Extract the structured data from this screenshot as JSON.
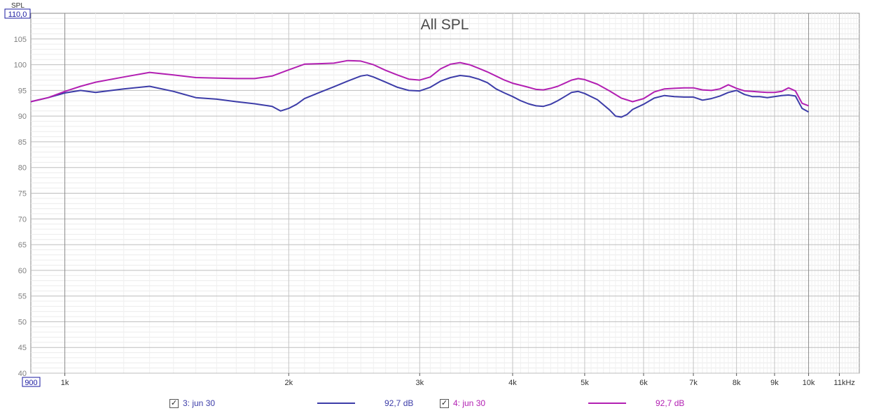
{
  "chart_data": {
    "type": "line",
    "title": "All SPL",
    "ylabel": "SPL",
    "xlabel": "",
    "x_scale": "log",
    "xlim": [
      900,
      11700
    ],
    "ylim": [
      40,
      110
    ],
    "y_max_label": "110,0",
    "x_min_label": "900",
    "y_ticks": [
      40,
      45,
      50,
      55,
      60,
      65,
      70,
      75,
      80,
      85,
      90,
      95,
      100,
      105
    ],
    "x_ticks": [
      {
        "value": 1000,
        "label": "1k"
      },
      {
        "value": 2000,
        "label": "2k"
      },
      {
        "value": 3000,
        "label": "3k"
      },
      {
        "value": 4000,
        "label": "4k"
      },
      {
        "value": 5000,
        "label": "5k"
      },
      {
        "value": 6000,
        "label": "6k"
      },
      {
        "value": 7000,
        "label": "7k"
      },
      {
        "value": 8000,
        "label": "8k"
      },
      {
        "value": 9000,
        "label": "9k"
      },
      {
        "value": 10000,
        "label": "10k"
      },
      {
        "value": 11000,
        "label": "11kHz"
      }
    ],
    "grid": true,
    "series": [
      {
        "name": "3: jun 30",
        "color": "#3c3ca8",
        "level_label": "92,7 dB",
        "x": [
          900,
          950,
          1000,
          1050,
          1100,
          1200,
          1300,
          1400,
          1500,
          1600,
          1700,
          1800,
          1900,
          1950,
          2000,
          2050,
          2100,
          2200,
          2300,
          2400,
          2500,
          2550,
          2600,
          2700,
          2800,
          2900,
          3000,
          3100,
          3200,
          3300,
          3400,
          3500,
          3600,
          3700,
          3800,
          3900,
          4000,
          4100,
          4200,
          4300,
          4400,
          4500,
          4600,
          4700,
          4800,
          4900,
          5000,
          5200,
          5400,
          5500,
          5600,
          5700,
          5800,
          6000,
          6200,
          6400,
          6600,
          6800,
          7000,
          7200,
          7400,
          7600,
          7800,
          8000,
          8200,
          8400,
          8600,
          8800,
          9000,
          9200,
          9400,
          9600,
          9800,
          10000
        ],
        "y": [
          92.8,
          93.6,
          94.5,
          95.0,
          94.6,
          95.3,
          95.8,
          94.8,
          93.6,
          93.3,
          92.8,
          92.4,
          91.9,
          91.0,
          91.5,
          92.3,
          93.4,
          94.6,
          95.7,
          96.8,
          97.8,
          98.0,
          97.6,
          96.6,
          95.6,
          95.0,
          94.9,
          95.6,
          96.8,
          97.5,
          97.9,
          97.7,
          97.2,
          96.5,
          95.3,
          94.5,
          93.8,
          93.0,
          92.4,
          92.0,
          91.9,
          92.3,
          93.0,
          93.8,
          94.6,
          94.8,
          94.4,
          93.2,
          91.2,
          90.0,
          89.8,
          90.3,
          91.3,
          92.3,
          93.5,
          94.0,
          93.8,
          93.7,
          93.7,
          93.1,
          93.4,
          93.9,
          94.6,
          95.0,
          94.2,
          93.8,
          93.8,
          93.6,
          93.8,
          94.0,
          94.1,
          93.9,
          91.5,
          90.8
        ]
      },
      {
        "name": "4: jun 30",
        "color": "#b21fb2",
        "level_label": "92,7 dB",
        "x": [
          900,
          950,
          1000,
          1050,
          1100,
          1200,
          1300,
          1400,
          1500,
          1600,
          1700,
          1800,
          1900,
          2000,
          2100,
          2200,
          2300,
          2400,
          2500,
          2600,
          2700,
          2800,
          2900,
          3000,
          3100,
          3200,
          3300,
          3400,
          3500,
          3600,
          3700,
          3800,
          3900,
          4000,
          4100,
          4200,
          4300,
          4400,
          4500,
          4600,
          4700,
          4800,
          4900,
          5000,
          5200,
          5400,
          5600,
          5800,
          6000,
          6200,
          6400,
          6600,
          6800,
          7000,
          7200,
          7400,
          7600,
          7800,
          8000,
          8200,
          8400,
          8600,
          8800,
          9000,
          9200,
          9400,
          9600,
          9800,
          10000
        ],
        "y": [
          92.8,
          93.6,
          94.8,
          95.8,
          96.6,
          97.6,
          98.5,
          98.0,
          97.5,
          97.4,
          97.3,
          97.3,
          97.8,
          99.0,
          100.1,
          100.2,
          100.3,
          100.8,
          100.7,
          100.0,
          98.9,
          98.0,
          97.2,
          97.0,
          97.6,
          99.2,
          100.1,
          100.4,
          100.0,
          99.3,
          98.6,
          97.8,
          97.0,
          96.4,
          96.0,
          95.6,
          95.2,
          95.1,
          95.4,
          95.8,
          96.4,
          97.0,
          97.3,
          97.1,
          96.2,
          94.9,
          93.5,
          92.8,
          93.4,
          94.7,
          95.3,
          95.4,
          95.5,
          95.5,
          95.1,
          95.0,
          95.3,
          96.1,
          95.4,
          94.9,
          94.8,
          94.7,
          94.6,
          94.6,
          94.8,
          95.5,
          94.9,
          92.5,
          92.0
        ]
      }
    ]
  }
}
